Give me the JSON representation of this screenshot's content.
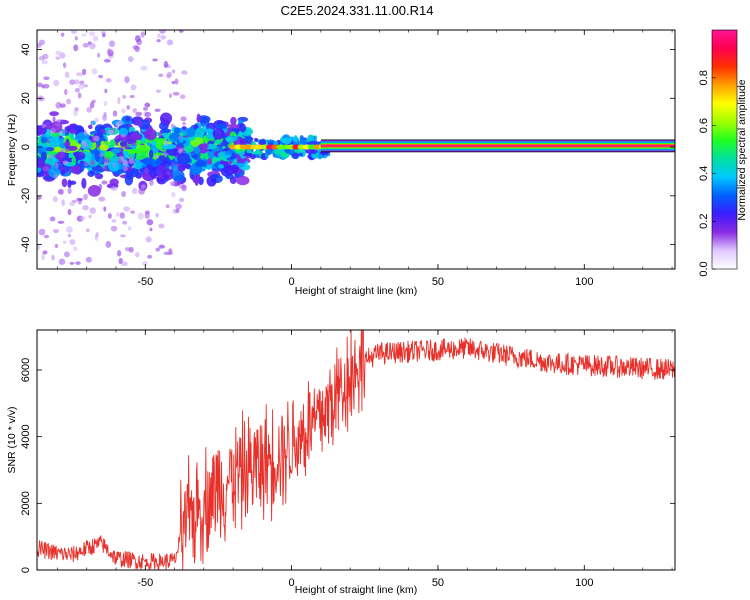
{
  "figure": {
    "title": "C2E5.2024.331.11.00.R14"
  },
  "chart_data": [
    {
      "type": "heatmap",
      "title": "C2E5.2024.331.11.00.R14",
      "xlabel": "Height of straight line (km)",
      "ylabel": "Frequency (Hz)",
      "xlim": [
        -87,
        131
      ],
      "ylim": [
        -50,
        48
      ],
      "xticks": [
        -50,
        0,
        50,
        100
      ],
      "yticks": [
        -40,
        -20,
        0,
        20,
        40
      ],
      "colorbar": {
        "label": "Normalized spectral amplitude",
        "range": [
          0,
          1
        ],
        "ticks": [
          0.0,
          0.2,
          0.4,
          0.6,
          0.8
        ],
        "colors": [
          "#ffffff",
          "#e0c8ff",
          "#8a2be2",
          "#3b1cff",
          "#0060ff",
          "#00c8ff",
          "#00e0a0",
          "#20ff20",
          "#a0ff00",
          "#ffff00",
          "#ffa000",
          "#ff3000",
          "#ff0050",
          "#ff1493"
        ]
      },
      "features": {
        "noisy_region_x": [
          -87,
          -15
        ],
        "transition_region_x": [
          -15,
          12
        ],
        "steady_line_x": [
          12,
          131
        ],
        "steady_line_frequency": 0.5,
        "steady_line_amplitude": 0.95
      }
    },
    {
      "type": "line",
      "xlabel": "Height of straight line (km)",
      "ylabel": "SNR (10 * v/v)",
      "xlim": [
        -87,
        131
      ],
      "ylim": [
        0,
        7200
      ],
      "xticks": [
        -50,
        0,
        50,
        100
      ],
      "yticks": [
        0,
        2000,
        4000,
        6000
      ],
      "series": [
        {
          "color": "#e8302a",
          "x": [
            -87,
            -80,
            -75,
            -70,
            -65,
            -60,
            -55,
            -50,
            -45,
            -40,
            -38,
            -35,
            -30,
            -25,
            -20,
            -15,
            -10,
            -5,
            0,
            5,
            10,
            15,
            20,
            25,
            30,
            40,
            50,
            60,
            70,
            80,
            90,
            100,
            110,
            120,
            131
          ],
          "values": [
            650,
            500,
            450,
            650,
            800,
            350,
            300,
            250,
            250,
            280,
            900,
            1600,
            2000,
            2500,
            2800,
            3000,
            3200,
            3500,
            3800,
            4200,
            4600,
            5200,
            5900,
            6300,
            6500,
            6550,
            6600,
            6650,
            6500,
            6350,
            6200,
            6150,
            6100,
            6050,
            6000
          ]
        }
      ]
    }
  ]
}
